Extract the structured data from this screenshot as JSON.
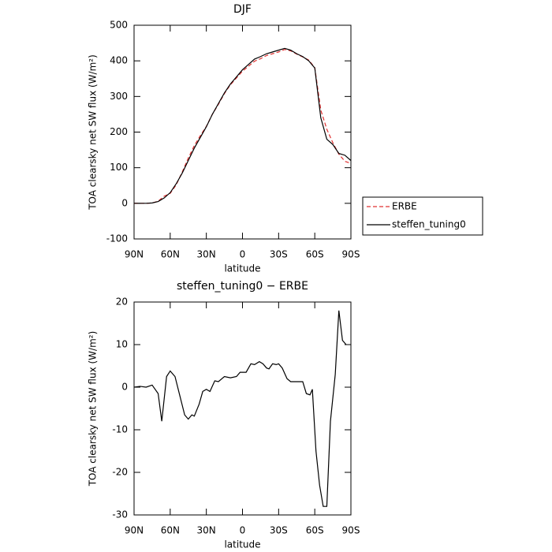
{
  "chart_data": [
    {
      "type": "line",
      "title": "DJF",
      "xlabel": "latitude",
      "ylabel": "TOA clearsky net SW flux (W/m²)",
      "x": [
        90,
        85,
        80,
        75,
        70,
        65,
        60,
        55,
        50,
        45,
        40,
        35,
        30,
        25,
        20,
        15,
        10,
        5,
        0,
        -5,
        -10,
        -15,
        -20,
        -25,
        -30,
        -35,
        -40,
        -45,
        -50,
        -55,
        -60,
        -65,
        -70,
        -75,
        -80,
        -85,
        -90
      ],
      "series": [
        {
          "name": "ERBE",
          "color": "#e03030",
          "dashed": true,
          "values": [
            0,
            0,
            0,
            1,
            6,
            20,
            28,
            52,
            88,
            127,
            162,
            190,
            216,
            250,
            278,
            308,
            333,
            352,
            371,
            385,
            399,
            406,
            415,
            420,
            425,
            432,
            428,
            419,
            411,
            402,
            381,
            262,
            208,
            170,
            138,
            118,
            112
          ]
        },
        {
          "name": "steffen_tuning0",
          "color": "#000000",
          "dashed": false,
          "values": [
            0,
            0,
            0,
            1,
            5,
            15,
            30,
            55,
            85,
            120,
            155,
            185,
            215,
            250,
            280,
            310,
            335,
            355,
            375,
            390,
            405,
            412,
            420,
            425,
            430,
            435,
            430,
            420,
            412,
            400,
            380,
            240,
            180,
            165,
            140,
            135,
            120
          ]
        }
      ],
      "xlim": [
        90,
        -90
      ],
      "xticks": [
        {
          "value": 90,
          "label": "90N"
        },
        {
          "value": 60,
          "label": "60N"
        },
        {
          "value": 30,
          "label": "30N"
        },
        0,
        {
          "value": -30,
          "label": "30S"
        },
        {
          "value": -60,
          "label": "60S"
        },
        {
          "value": -90,
          "label": "90S"
        }
      ],
      "ylim": [
        -100,
        500
      ],
      "yticks": [
        -100,
        0,
        100,
        200,
        300,
        400,
        500
      ],
      "legend": "right"
    },
    {
      "type": "line",
      "title": "steffen_tuning0 − ERBE",
      "xlabel": "latitude",
      "ylabel": "TOA clearsky net SW flux (W/m²)",
      "x": [
        90,
        85,
        80,
        75,
        70,
        67,
        63,
        60,
        56,
        52,
        48,
        45,
        42,
        40,
        36,
        33,
        30,
        27,
        23,
        20,
        15,
        10,
        5,
        2,
        -3,
        -7,
        -10,
        -14,
        -17,
        -20,
        -22,
        -25,
        -28,
        -30,
        -33,
        -37,
        -40,
        -45,
        -50,
        -53,
        -56,
        -58,
        -61,
        -64,
        -67,
        -70,
        -73,
        -77,
        -80,
        -83,
        -86
      ],
      "values": [
        0,
        0.2,
        0,
        0.5,
        -1.5,
        -8,
        2.5,
        3.8,
        2.5,
        -2,
        -6.5,
        -7.5,
        -6.5,
        -6.8,
        -4,
        -1,
        -0.5,
        -1,
        1.5,
        1.3,
        2.5,
        2.2,
        2.5,
        3.5,
        3.5,
        5.5,
        5.3,
        6,
        5.5,
        4.5,
        4.3,
        5.5,
        5.3,
        5.5,
        4.5,
        2,
        1.3,
        1.3,
        1.3,
        -1.5,
        -1.8,
        -0.5,
        -15,
        -23,
        -28,
        -28,
        -8,
        3,
        18,
        11,
        10
      ],
      "color": "#000000",
      "xlim": [
        90,
        -90
      ],
      "xticks": [
        {
          "value": 90,
          "label": "90N"
        },
        {
          "value": 60,
          "label": "60N"
        },
        {
          "value": 30,
          "label": "30N"
        },
        0,
        {
          "value": -30,
          "label": "30S"
        },
        {
          "value": -60,
          "label": "60S"
        },
        {
          "value": -90,
          "label": "90S"
        }
      ],
      "ylim": [
        -30,
        20
      ],
      "yticks": [
        -30,
        -20,
        -10,
        0,
        10,
        20
      ]
    }
  ]
}
